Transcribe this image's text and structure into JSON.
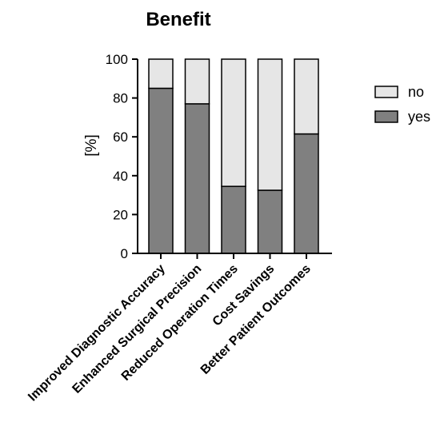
{
  "chart_data": {
    "type": "bar",
    "stacked": true,
    "title": "Benefit",
    "ylabel": "[%]",
    "xlabel": "",
    "ylim": [
      0,
      100
    ],
    "yticks": [
      0,
      20,
      40,
      60,
      80,
      100
    ],
    "categories": [
      "Improved Diagnostic Accuracy",
      "Enhanced Surgical Precision",
      "Reduced Operation Times",
      "Cost Savings",
      "Better Patient Outcomes"
    ],
    "series": [
      {
        "name": "yes",
        "values": [
          85,
          77,
          34.5,
          32.5,
          61.5
        ],
        "color": "#808080"
      },
      {
        "name": "no",
        "values": [
          15,
          23,
          65.5,
          67.5,
          38.5
        ],
        "color": "#e6e6e6"
      }
    ],
    "legend": {
      "position": "right",
      "order": [
        "no",
        "yes"
      ]
    },
    "grid": false
  }
}
